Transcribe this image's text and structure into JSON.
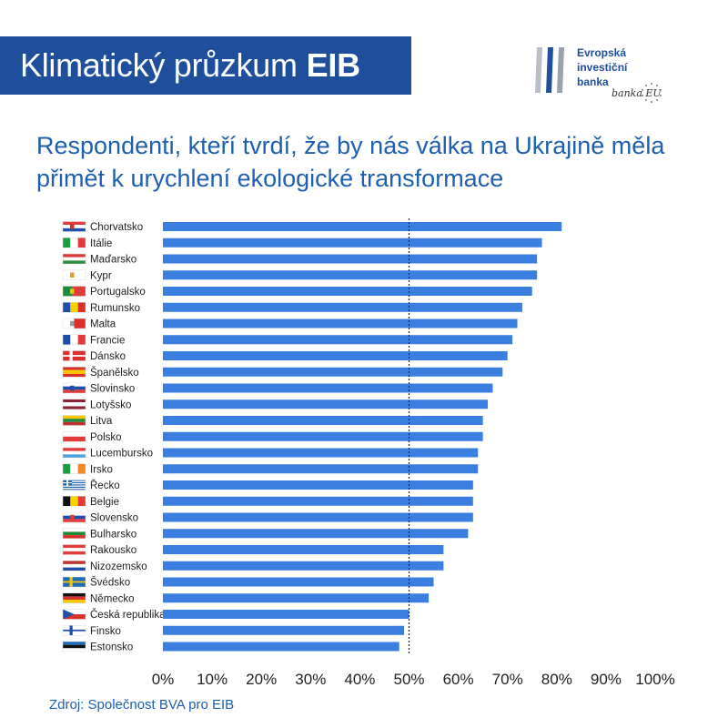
{
  "header": {
    "title_main": "Klimatický průzkum",
    "title_bold": "EIB"
  },
  "logo": {
    "line1": "Evropská",
    "line2": "investiční",
    "line3": "banka",
    "signature": "banka EU",
    "icon": "eib-logo-icon"
  },
  "colors": {
    "title_band": "#1f4e9c",
    "bar": "#3a7fe0",
    "subtitle": "#1f5faf",
    "reference_line": "#222222"
  },
  "chart_data": {
    "type": "bar",
    "orientation": "horizontal",
    "title": "Respondenti, kteří tvrdí, že by nás válka na Ukrajině měla přimět k urychlení ekologické transformace",
    "categories": [
      "Chorvatsko",
      "Itálie",
      "Maďarsko",
      "Kypr",
      "Portugalsko",
      "Rumunsko",
      "Malta",
      "Francie",
      "Dánsko",
      "Španělsko",
      "Slovinsko",
      "Lotyšsko",
      "Litva",
      "Polsko",
      "Lucembursko",
      "Irsko",
      "Řecko",
      "Belgie",
      "Slovensko",
      "Bulharsko",
      "Rakousko",
      "Nizozemsko",
      "Švédsko",
      "Německo",
      "Česká republika",
      "Finsko",
      "Estonsko"
    ],
    "values": [
      81,
      77,
      76,
      76,
      75,
      73,
      72,
      71,
      70,
      69,
      67,
      66,
      65,
      65,
      64,
      64,
      63,
      63,
      63,
      62,
      57,
      57,
      55,
      54,
      50,
      49,
      48
    ],
    "x_ticks": [
      "0%",
      "10%",
      "20%",
      "30%",
      "40%",
      "50%",
      "60%",
      "70%",
      "80%",
      "90%",
      "100%"
    ],
    "xlim": [
      0,
      100
    ],
    "reference_line": 50,
    "grid": false,
    "legend": "none"
  },
  "source": "Zdroj: Společnost BVA pro EIB"
}
